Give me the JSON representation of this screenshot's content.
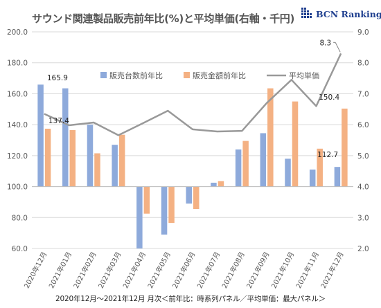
{
  "header": {
    "title": "サウンド関連製品販売前年比(%)と平均単価(右軸・千円)"
  },
  "logo": {
    "text": "BCN Ranking"
  },
  "footer": {
    "note": "2020年12月～2021年12月 月次＜前年比：時系列パネル／平均単価：最大パネル＞"
  },
  "chart_data": {
    "type": "bar+line",
    "title": "サウンド関連製品販売前年比(%)と平均単価(右軸・千円)",
    "categories": [
      "2020年12月",
      "2021年01月",
      "2021年02月",
      "2021年03月",
      "2021年04月",
      "2021年05月",
      "2021年06月",
      "2021年07月",
      "2021年08月",
      "2021年09月",
      "2021年10月",
      "2021年11月",
      "2021年12月"
    ],
    "series": [
      {
        "name": "販売台数前年比",
        "type": "bar",
        "axis": "left",
        "color": "#8eaadb",
        "values": [
          165.9,
          163.5,
          140.0,
          127.0,
          60.0,
          69.0,
          89.0,
          102.5,
          124.0,
          134.5,
          118.0,
          111.0,
          112.7
        ]
      },
      {
        "name": "販売金額前年比",
        "type": "bar",
        "axis": "left",
        "color": "#f4b183",
        "values": [
          137.4,
          136.5,
          121.5,
          133.5,
          82.5,
          76.5,
          85.5,
          103.5,
          129.5,
          163.5,
          155.0,
          124.5,
          150.4
        ]
      },
      {
        "name": "平均単価",
        "type": "line",
        "axis": "right",
        "color": "#999999",
        "values": [
          6.35,
          5.98,
          6.07,
          5.66,
          6.05,
          6.45,
          5.85,
          5.78,
          5.8,
          6.7,
          7.45,
          6.6,
          8.3
        ]
      }
    ],
    "data_labels": [
      {
        "series": 0,
        "index": 0,
        "text": "165.9"
      },
      {
        "series": 1,
        "index": 0,
        "text": "137.4"
      },
      {
        "series": 0,
        "index": 12,
        "text": "112.7"
      },
      {
        "series": 1,
        "index": 12,
        "text": "150.4"
      },
      {
        "series": 2,
        "index": 12,
        "text": "8.3"
      }
    ],
    "y_left": {
      "min": 60,
      "max": 200,
      "step": 20,
      "ticks": [
        "60.0",
        "80.0",
        "100.0",
        "120.0",
        "140.0",
        "160.0",
        "180.0",
        "200.0"
      ]
    },
    "y_right": {
      "min": 2,
      "max": 9,
      "step": 1,
      "ticks": [
        "2.0",
        "3.0",
        "4.0",
        "5.0",
        "6.0",
        "7.0",
        "8.0",
        "9.0"
      ]
    },
    "bar_baseline": 100,
    "grid": true,
    "legend_position": "top-center"
  }
}
